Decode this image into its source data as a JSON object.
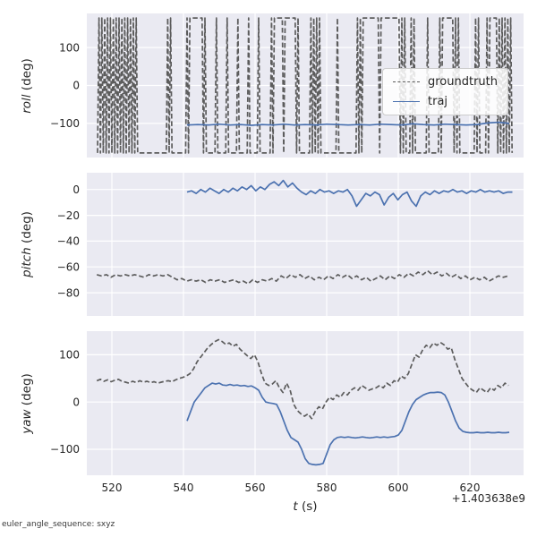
{
  "style": {
    "figure_bg": "#ffffff",
    "axes_bg": "#eaeaf2",
    "grid_color": "#ffffff",
    "text_color": "#262626",
    "groundtruth_color": "#5c5c5c",
    "traj_color": "#4c72b0"
  },
  "footer_note": "euler_angle_sequence: sxyz",
  "x_axis": {
    "label_var": "t",
    "label_unit": " (s)",
    "offset_text": "+1.403638e9"
  },
  "legend": {
    "position": "right-center of roll subplot",
    "entries": [
      {
        "label": "groundtruth",
        "color": "#5c5c5c",
        "dash": true
      },
      {
        "label": "traj",
        "color": "#4c72b0",
        "dash": false
      }
    ]
  },
  "chart_data": [
    {
      "id": "roll",
      "type": "line",
      "ylabel_var": "roll",
      "ylabel_unit": " (deg)",
      "xlim": [
        513,
        635
      ],
      "ylim": [
        -190,
        190
      ],
      "xticks": [
        520,
        540,
        560,
        580,
        600,
        620
      ],
      "yticks": [
        100,
        0,
        -100
      ],
      "show_x_tick_labels": false,
      "series": [
        {
          "name": "groundtruth",
          "color": "#5c5c5c",
          "dash": true,
          "x": [
            516.0,
            516.4,
            516.8,
            517.2,
            517.6,
            518.0,
            518.4,
            518.8,
            519.2,
            519.6,
            520.0,
            520.4,
            520.8,
            521.2,
            521.6,
            522.0,
            522.4,
            522.8,
            523.2,
            523.6,
            524.0,
            524.4,
            524.8,
            525.2,
            525.6,
            526.0,
            526.4,
            526.8,
            527.2,
            535.2,
            535.6,
            536.0,
            536.4,
            536.8,
            540.6,
            541.0,
            541.4,
            541.8,
            545.2,
            545.6,
            546.0,
            546.4,
            548.8,
            549.2,
            549.6,
            551.8,
            552.2,
            552.6,
            554.8,
            555.2,
            555.6,
            557.8,
            558.2,
            558.6,
            560.6,
            561.0,
            561.4,
            564.2,
            564.6,
            565.0,
            565.4,
            567.6,
            568.0,
            568.4,
            571.2,
            571.6,
            572.0,
            572.4,
            575.2,
            575.6,
            576.0,
            576.4,
            576.8,
            577.2,
            577.6,
            578.0,
            578.4,
            582.6,
            583.0,
            583.4,
            588.2,
            588.6,
            589.0,
            589.4,
            589.8,
            590.2,
            594.4,
            594.8,
            595.2,
            600.2,
            600.6,
            601.0,
            601.4,
            601.8,
            602.2,
            603.2,
            603.6,
            604.0,
            604.4,
            604.8,
            607.8,
            608.2,
            608.6,
            611.2,
            611.6,
            612.0,
            612.4,
            615.2,
            615.6,
            616.0,
            616.4,
            616.8,
            617.2,
            621.2,
            621.6,
            622.0,
            622.4,
            622.8,
            624.4,
            624.8,
            625.2,
            625.6,
            627.4,
            627.8,
            628.2,
            628.6,
            629.0,
            629.4,
            629.8,
            630.2,
            630.6,
            631.0,
            631.4,
            631.8
          ],
          "y": [
            -178,
            178,
            -178,
            178,
            -178,
            178,
            -178,
            178,
            -178,
            178,
            -178,
            178,
            -178,
            178,
            -178,
            178,
            -178,
            178,
            -178,
            178,
            -178,
            178,
            -178,
            178,
            -178,
            178,
            -178,
            178,
            -178,
            -178,
            178,
            -178,
            178,
            -178,
            -178,
            178,
            -178,
            178,
            178,
            -178,
            178,
            -178,
            -178,
            178,
            -178,
            -178,
            178,
            -178,
            -178,
            178,
            -178,
            -178,
            178,
            -178,
            -178,
            178,
            -178,
            -178,
            178,
            -178,
            178,
            178,
            -178,
            178,
            178,
            -178,
            178,
            -178,
            -178,
            178,
            -178,
            178,
            -178,
            178,
            -178,
            178,
            -178,
            -178,
            178,
            -178,
            -178,
            178,
            -178,
            178,
            -178,
            178,
            178,
            -178,
            178,
            178,
            -178,
            178,
            -178,
            178,
            -178,
            -178,
            178,
            -178,
            178,
            -178,
            -178,
            178,
            -178,
            -178,
            178,
            -178,
            178,
            178,
            -178,
            178,
            -178,
            178,
            -178,
            -178,
            178,
            -178,
            178,
            -178,
            -178,
            178,
            -178,
            178,
            178,
            -178,
            178,
            -178,
            178,
            -178,
            178,
            -178,
            178,
            -178,
            178,
            -178
          ]
        },
        {
          "name": "traj",
          "color": "#4c72b0",
          "dash": false,
          "x0": 541,
          "dx": 3,
          "y": [
            -104,
            -103,
            -104,
            -102,
            -104,
            -103,
            -105,
            -103,
            -104,
            -102,
            -104,
            -103,
            -104,
            -102,
            -103,
            -104,
            -103,
            -104,
            -102,
            -103,
            -104,
            -101,
            -103,
            -104,
            -102,
            -103,
            -104,
            -103,
            -99,
            -97,
            -100
          ]
        }
      ]
    },
    {
      "id": "pitch",
      "type": "line",
      "ylabel_var": "pitch",
      "ylabel_unit": " (deg)",
      "xlim": [
        513,
        635
      ],
      "ylim": [
        -98,
        13
      ],
      "xticks": [
        520,
        540,
        560,
        580,
        600,
        620
      ],
      "yticks": [
        0,
        -20,
        -40,
        -60,
        -80
      ],
      "show_x_tick_labels": false,
      "series": [
        {
          "name": "groundtruth",
          "color": "#5c5c5c",
          "dash": true,
          "x0": 515.8,
          "dx": 1.32,
          "y": [
            -66,
            -67,
            -66,
            -68,
            -66,
            -67,
            -66,
            -67,
            -66,
            -67,
            -68,
            -66,
            -67,
            -66,
            -67,
            -66,
            -68,
            -70,
            -69,
            -71,
            -70,
            -71,
            -70,
            -72,
            -70,
            -71,
            -70,
            -72,
            -71,
            -70,
            -72,
            -71,
            -73,
            -70,
            -72,
            -70,
            -71,
            -69,
            -71,
            -67,
            -69,
            -66,
            -68,
            -66,
            -69,
            -67,
            -70,
            -68,
            -70,
            -67,
            -69,
            -66,
            -68,
            -66,
            -69,
            -67,
            -70,
            -68,
            -71,
            -69,
            -67,
            -70,
            -67,
            -69,
            -66,
            -68,
            -65,
            -67,
            -64,
            -66,
            -63,
            -66,
            -64,
            -67,
            -65,
            -68,
            -66,
            -69,
            -67,
            -70,
            -68,
            -70,
            -68,
            -71,
            -69,
            -67,
            -68,
            -67
          ]
        },
        {
          "name": "traj",
          "color": "#4c72b0",
          "dash": false,
          "x0": 541,
          "dx": 1.28,
          "y": [
            -2,
            -1,
            -3,
            0,
            -2,
            1,
            -1,
            -3,
            0,
            -2,
            1,
            -1,
            2,
            0,
            3,
            -1,
            2,
            0,
            4,
            6,
            3,
            7,
            2,
            5,
            1,
            -2,
            -4,
            -1,
            -3,
            0,
            -2,
            -1,
            -3,
            -1,
            -2,
            0,
            -5,
            -13,
            -8,
            -3,
            -5,
            -2,
            -4,
            -12,
            -6,
            -3,
            -8,
            -4,
            -2,
            -9,
            -13,
            -5,
            -2,
            -4,
            -1,
            -3,
            -1,
            -2,
            0,
            -2,
            -1,
            -3,
            -1,
            -2,
            0,
            -2,
            -1,
            -2,
            -1,
            -3,
            -2,
            -2
          ]
        }
      ]
    },
    {
      "id": "yaw",
      "type": "line",
      "ylabel_var": "yaw",
      "ylabel_unit": " (deg)",
      "xlim": [
        513,
        635
      ],
      "ylim": [
        -155,
        150
      ],
      "xticks": [
        520,
        540,
        560,
        580,
        600,
        620
      ],
      "yticks": [
        100,
        0,
        -100
      ],
      "show_x_tick_labels": true,
      "series": [
        {
          "name": "groundtruth",
          "color": "#5c5c5c",
          "dash": true,
          "x0": 515.8,
          "dx": 1,
          "y": [
            45,
            48,
            44,
            47,
            43,
            46,
            48,
            44,
            42,
            40,
            44,
            41,
            45,
            42,
            44,
            41,
            43,
            40,
            42,
            44,
            45,
            43,
            47,
            50,
            52,
            55,
            60,
            70,
            85,
            95,
            105,
            115,
            122,
            128,
            132,
            128,
            122,
            125,
            118,
            122,
            112,
            105,
            98,
            92,
            100,
            85,
            60,
            40,
            35,
            38,
            45,
            30,
            20,
            40,
            25,
            -5,
            -18,
            -25,
            -30,
            -25,
            -35,
            -20,
            -10,
            -15,
            0,
            10,
            5,
            15,
            10,
            20,
            15,
            25,
            30,
            25,
            35,
            30,
            25,
            28,
            30,
            35,
            30,
            40,
            35,
            45,
            42,
            55,
            50,
            60,
            80,
            100,
            95,
            110,
            120,
            115,
            125,
            120,
            126,
            121,
            112,
            115,
            90,
            70,
            50,
            40,
            30,
            25,
            20,
            30,
            25,
            20,
            30,
            25,
            35,
            30,
            40,
            35
          ]
        },
        {
          "name": "traj",
          "color": "#4c72b0",
          "dash": false,
          "x0": 541,
          "dx": 1,
          "y": [
            -40,
            -20,
            0,
            10,
            20,
            30,
            35,
            40,
            38,
            40,
            36,
            35,
            37,
            35,
            36,
            34,
            35,
            33,
            34,
            30,
            25,
            10,
            0,
            -2,
            -3,
            -5,
            -20,
            -40,
            -60,
            -75,
            -80,
            -85,
            -100,
            -120,
            -130,
            -132,
            -133,
            -132,
            -130,
            -110,
            -90,
            -80,
            -75,
            -74,
            -75,
            -74,
            -75,
            -76,
            -75,
            -74,
            -75,
            -76,
            -75,
            -74,
            -75,
            -74,
            -75,
            -74,
            -73,
            -70,
            -60,
            -40,
            -20,
            -5,
            5,
            10,
            15,
            18,
            20,
            20,
            21,
            20,
            15,
            0,
            -20,
            -40,
            -55,
            -62,
            -64,
            -65,
            -65,
            -64,
            -65,
            -65,
            -64,
            -65,
            -65,
            -64,
            -65,
            -65,
            -64
          ]
        }
      ]
    }
  ]
}
